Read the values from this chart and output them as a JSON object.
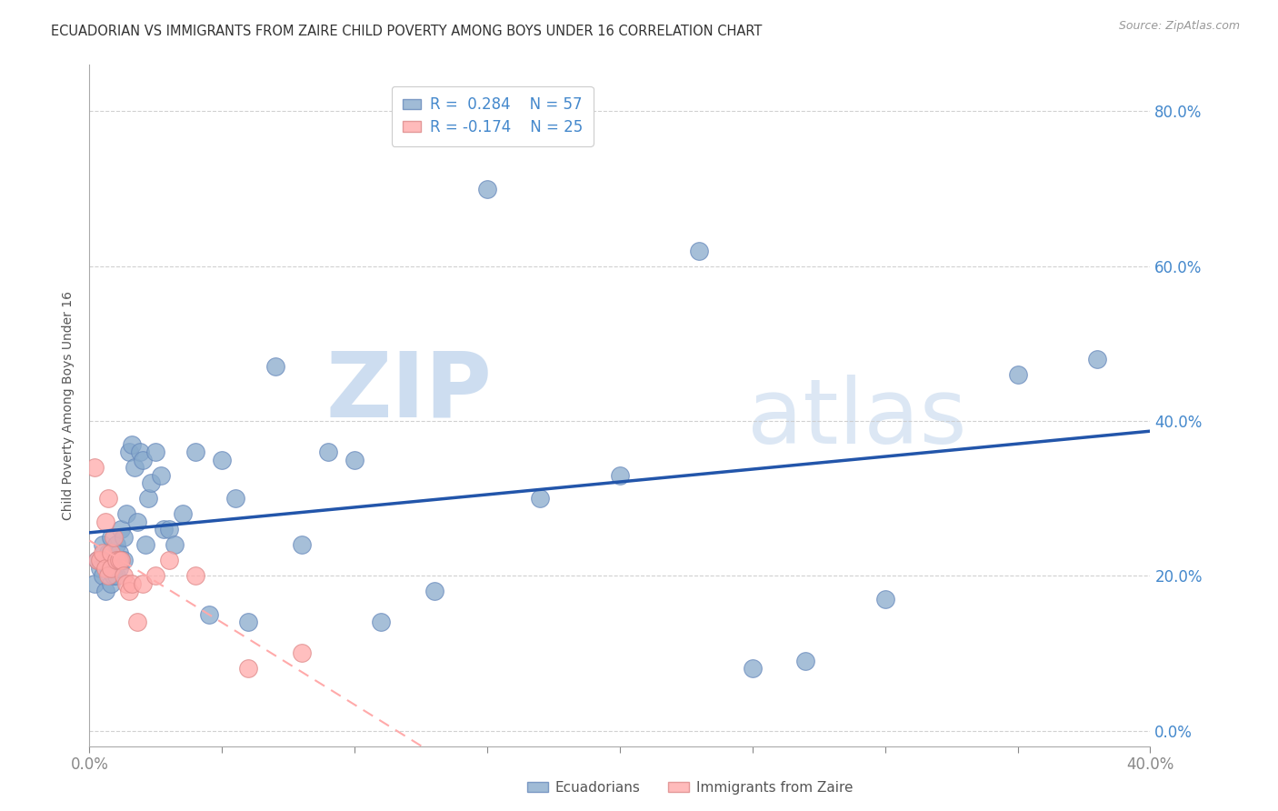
{
  "title": "ECUADORIAN VS IMMIGRANTS FROM ZAIRE CHILD POVERTY AMONG BOYS UNDER 16 CORRELATION CHART",
  "source_text": "Source: ZipAtlas.com",
  "ylabel": "Child Poverty Among Boys Under 16",
  "watermark_zip": "ZIP",
  "watermark_atlas": "atlas",
  "xlim": [
    0.0,
    0.4
  ],
  "ylim": [
    -0.02,
    0.86
  ],
  "yticks": [
    0.0,
    0.2,
    0.4,
    0.6,
    0.8
  ],
  "xticks": [
    0.0,
    0.05,
    0.1,
    0.15,
    0.2,
    0.25,
    0.3,
    0.35,
    0.4
  ],
  "xlabels_show": [
    0.0,
    0.4
  ],
  "blue_color": "#88AACC",
  "blue_edge": "#6688BB",
  "pink_color": "#FFAAAA",
  "pink_edge": "#DD8888",
  "line_blue": "#2255AA",
  "line_pink": "#FFAAAA",
  "axis_color": "#4488CC",
  "grid_color": "#CCCCCC",
  "title_color": "#333333",
  "ecuadorians_x": [
    0.002,
    0.003,
    0.004,
    0.005,
    0.005,
    0.006,
    0.006,
    0.007,
    0.007,
    0.008,
    0.008,
    0.009,
    0.009,
    0.01,
    0.01,
    0.011,
    0.011,
    0.012,
    0.012,
    0.013,
    0.013,
    0.014,
    0.015,
    0.016,
    0.017,
    0.018,
    0.019,
    0.02,
    0.021,
    0.022,
    0.023,
    0.025,
    0.027,
    0.028,
    0.03,
    0.032,
    0.035,
    0.04,
    0.045,
    0.05,
    0.055,
    0.06,
    0.07,
    0.08,
    0.09,
    0.1,
    0.11,
    0.13,
    0.15,
    0.17,
    0.2,
    0.23,
    0.25,
    0.27,
    0.3,
    0.35,
    0.38
  ],
  "ecuadorians_y": [
    0.19,
    0.22,
    0.21,
    0.2,
    0.24,
    0.22,
    0.18,
    0.23,
    0.21,
    0.25,
    0.19,
    0.22,
    0.2,
    0.24,
    0.2,
    0.23,
    0.21,
    0.26,
    0.22,
    0.25,
    0.22,
    0.28,
    0.36,
    0.37,
    0.34,
    0.27,
    0.36,
    0.35,
    0.24,
    0.3,
    0.32,
    0.36,
    0.33,
    0.26,
    0.26,
    0.24,
    0.28,
    0.36,
    0.15,
    0.35,
    0.3,
    0.14,
    0.47,
    0.24,
    0.36,
    0.35,
    0.14,
    0.18,
    0.7,
    0.3,
    0.33,
    0.62,
    0.08,
    0.09,
    0.17,
    0.46,
    0.48
  ],
  "zaire_x": [
    0.002,
    0.003,
    0.004,
    0.005,
    0.006,
    0.006,
    0.007,
    0.007,
    0.008,
    0.008,
    0.009,
    0.01,
    0.011,
    0.012,
    0.013,
    0.014,
    0.015,
    0.016,
    0.018,
    0.02,
    0.025,
    0.03,
    0.04,
    0.06,
    0.08
  ],
  "zaire_y": [
    0.34,
    0.22,
    0.22,
    0.23,
    0.21,
    0.27,
    0.2,
    0.3,
    0.23,
    0.21,
    0.25,
    0.22,
    0.22,
    0.22,
    0.2,
    0.19,
    0.18,
    0.19,
    0.14,
    0.19,
    0.2,
    0.22,
    0.2,
    0.08,
    0.1
  ]
}
